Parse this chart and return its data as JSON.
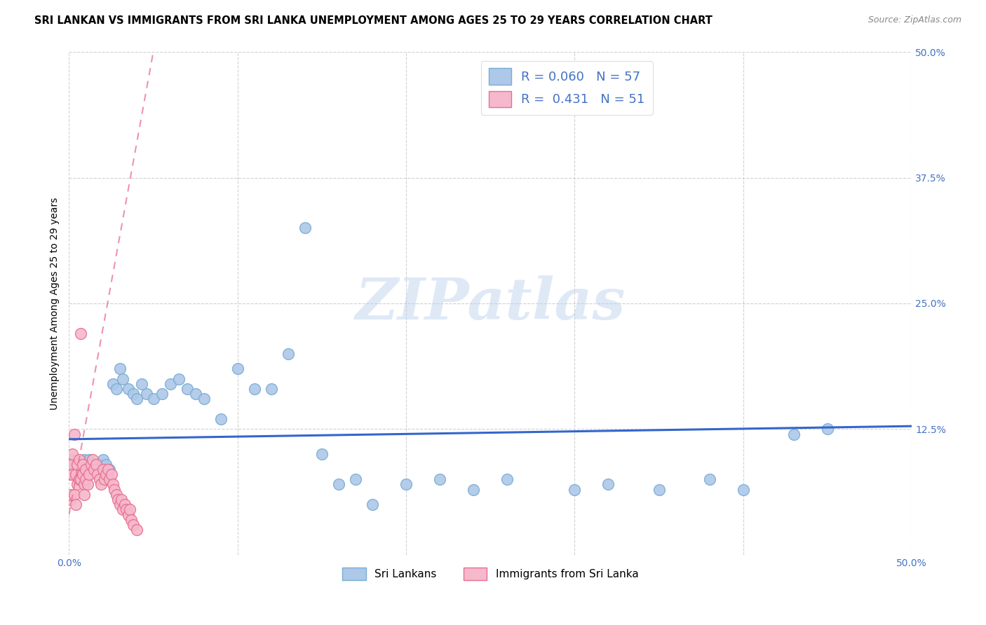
{
  "title": "SRI LANKAN VS IMMIGRANTS FROM SRI LANKA UNEMPLOYMENT AMONG AGES 25 TO 29 YEARS CORRELATION CHART",
  "source": "Source: ZipAtlas.com",
  "ylabel": "Unemployment Among Ages 25 to 29 years",
  "xlim": [
    0.0,
    0.5
  ],
  "ylim": [
    0.0,
    0.5
  ],
  "x_ticks": [
    0.0,
    0.1,
    0.2,
    0.3,
    0.4,
    0.5
  ],
  "y_ticks": [
    0.0,
    0.125,
    0.25,
    0.375,
    0.5
  ],
  "x_tick_labels": [
    "0.0%",
    "",
    "",
    "",
    "",
    "50.0%"
  ],
  "y_tick_labels_right": [
    "",
    "12.5%",
    "25.0%",
    "37.5%",
    "50.0%"
  ],
  "grid_color": "#cccccc",
  "background_color": "#ffffff",
  "watermark": "ZIPatlas",
  "series1_color": "#adc8e8",
  "series1_edge": "#7aadd4",
  "series2_color": "#f5b8cc",
  "series2_edge": "#e8708e",
  "trend1_color": "#3366cc",
  "trend2_color": "#e87090",
  "legend_R1": "0.060",
  "legend_N1": "57",
  "legend_R2": "0.431",
  "legend_N2": "51",
  "series1_label": "Sri Lankans",
  "series2_label": "Immigrants from Sri Lanka",
  "title_fontsize": 10.5,
  "axis_label_fontsize": 10,
  "tick_fontsize": 10,
  "legend_fontsize": 13,
  "sl_x": [
    0.002,
    0.003,
    0.004,
    0.005,
    0.006,
    0.007,
    0.008,
    0.009,
    0.01,
    0.011,
    0.012,
    0.013,
    0.015,
    0.016,
    0.017,
    0.018,
    0.019,
    0.02,
    0.022,
    0.024,
    0.026,
    0.028,
    0.03,
    0.032,
    0.035,
    0.038,
    0.04,
    0.043,
    0.046,
    0.05,
    0.055,
    0.06,
    0.065,
    0.07,
    0.075,
    0.08,
    0.09,
    0.1,
    0.11,
    0.12,
    0.13,
    0.14,
    0.15,
    0.16,
    0.17,
    0.18,
    0.2,
    0.22,
    0.24,
    0.26,
    0.3,
    0.32,
    0.35,
    0.38,
    0.4,
    0.43,
    0.45
  ],
  "sl_y": [
    0.095,
    0.09,
    0.085,
    0.09,
    0.08,
    0.09,
    0.085,
    0.095,
    0.09,
    0.085,
    0.095,
    0.09,
    0.085,
    0.09,
    0.085,
    0.09,
    0.085,
    0.095,
    0.09,
    0.085,
    0.17,
    0.165,
    0.185,
    0.175,
    0.165,
    0.16,
    0.155,
    0.17,
    0.16,
    0.155,
    0.16,
    0.17,
    0.175,
    0.165,
    0.16,
    0.155,
    0.135,
    0.185,
    0.165,
    0.165,
    0.2,
    0.325,
    0.1,
    0.07,
    0.075,
    0.05,
    0.07,
    0.075,
    0.065,
    0.075,
    0.065,
    0.07,
    0.065,
    0.075,
    0.065,
    0.12,
    0.125
  ],
  "imm_x": [
    0.0005,
    0.001,
    0.001,
    0.0015,
    0.002,
    0.002,
    0.003,
    0.003,
    0.004,
    0.004,
    0.005,
    0.005,
    0.006,
    0.006,
    0.007,
    0.007,
    0.008,
    0.008,
    0.009,
    0.009,
    0.01,
    0.01,
    0.011,
    0.012,
    0.013,
    0.014,
    0.015,
    0.016,
    0.017,
    0.018,
    0.019,
    0.02,
    0.021,
    0.022,
    0.023,
    0.024,
    0.025,
    0.026,
    0.027,
    0.028,
    0.029,
    0.03,
    0.031,
    0.032,
    0.033,
    0.034,
    0.035,
    0.036,
    0.037,
    0.038,
    0.04
  ],
  "imm_y": [
    0.055,
    0.06,
    0.08,
    0.09,
    0.1,
    0.08,
    0.12,
    0.06,
    0.08,
    0.05,
    0.09,
    0.07,
    0.075,
    0.095,
    0.075,
    0.22,
    0.09,
    0.08,
    0.07,
    0.06,
    0.085,
    0.075,
    0.07,
    0.08,
    0.09,
    0.095,
    0.085,
    0.09,
    0.08,
    0.075,
    0.07,
    0.085,
    0.075,
    0.08,
    0.085,
    0.075,
    0.08,
    0.07,
    0.065,
    0.06,
    0.055,
    0.05,
    0.055,
    0.045,
    0.05,
    0.045,
    0.04,
    0.045,
    0.035,
    0.03,
    0.025
  ],
  "trend1_x0": 0.0,
  "trend1_x1": 0.5,
  "trend1_y0": 0.115,
  "trend1_y1": 0.128,
  "trend2_x0": 0.0,
  "trend2_x1": 0.05,
  "trend2_y0": 0.04,
  "trend2_y1": 0.5
}
